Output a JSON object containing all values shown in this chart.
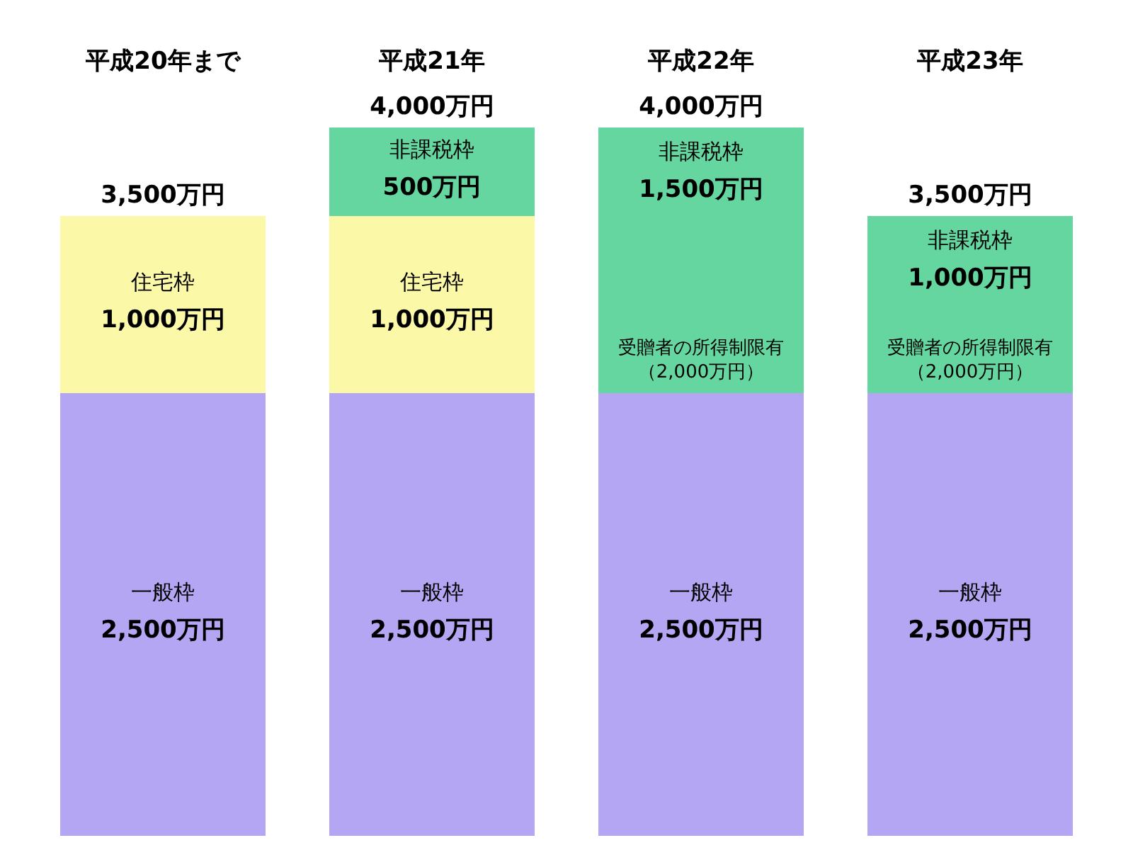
{
  "chart_data": {
    "type": "bar",
    "stacked": true,
    "categories": [
      "平成20年まで",
      "平成21年",
      "平成22年",
      "平成23年"
    ],
    "totals": [
      "3,500万円",
      "4,000万円",
      "4,000万円",
      "3,500万円"
    ],
    "series": [
      {
        "name": "一般枠",
        "color": "#b4a6f2",
        "values": [
          2500,
          2500,
          2500,
          2500
        ],
        "value_labels": [
          "2,500万円",
          "2,500万円",
          "2,500万円",
          "2,500万円"
        ]
      },
      {
        "name": "住宅枠",
        "color": "#fbf8a8",
        "values": [
          1000,
          1000,
          null,
          null
        ],
        "value_labels": [
          "1,000万円",
          "1,000万円",
          null,
          null
        ]
      },
      {
        "name": "非課税枠",
        "color": "#66d6a0",
        "values": [
          null,
          500,
          1500,
          1000
        ],
        "value_labels": [
          null,
          "500万円",
          "1,500万円",
          "1,000万円"
        ]
      }
    ],
    "annotations": [
      {
        "text": "受贈者の所得制限有（2,000万円）",
        "x": "平成22年",
        "y": 2500
      },
      {
        "text": "受贈者の所得制限有（2,000万円）",
        "x": "平成23年",
        "y": 2500
      }
    ],
    "legend": false
  }
}
